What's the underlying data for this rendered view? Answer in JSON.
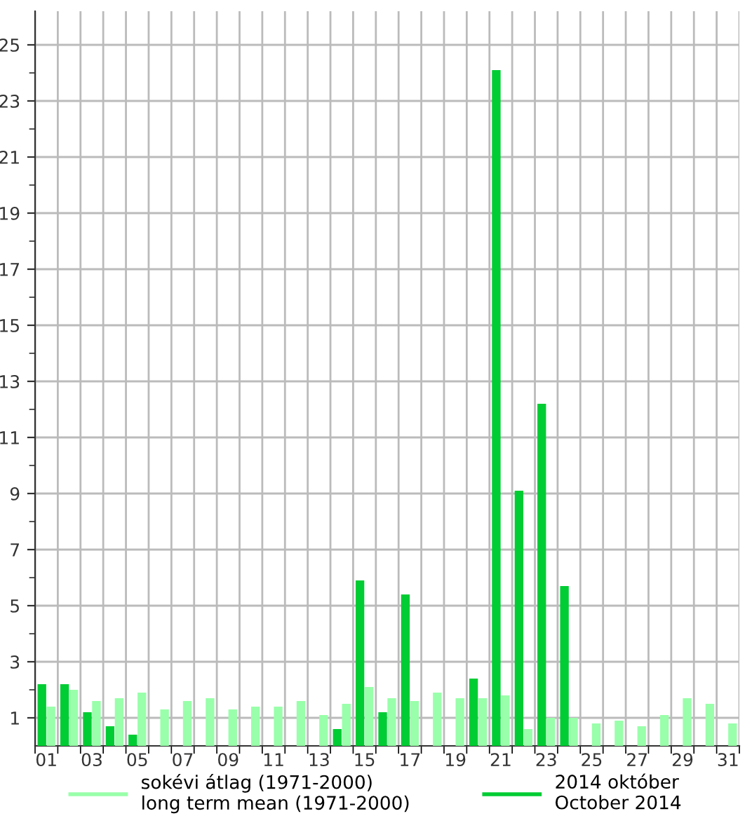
{
  "chart_data": {
    "type": "bar",
    "categories": [
      "01",
      null,
      "03",
      null,
      "05",
      null,
      "07",
      null,
      "09",
      null,
      "11",
      null,
      "13",
      null,
      "15",
      null,
      "17",
      null,
      "19",
      null,
      "21",
      null,
      "23",
      null,
      "25",
      null,
      "27",
      null,
      "29",
      null,
      "31"
    ],
    "series": [
      {
        "name": "sokévi átlag (1971-2000)\nlong term mean (1971-2000)",
        "color": "#99ffaa",
        "values": [
          1.4,
          2.0,
          1.6,
          1.7,
          1.9,
          1.3,
          1.6,
          1.7,
          1.3,
          1.4,
          1.4,
          1.6,
          1.1,
          1.5,
          2.1,
          1.7,
          1.6,
          1.9,
          1.7,
          1.7,
          1.8,
          0.6,
          1.0,
          1.0,
          0.8,
          0.9,
          0.7,
          1.1,
          1.7,
          1.5,
          0.8
        ]
      },
      {
        "name": "2014 október\nOctober 2014",
        "color": "#00cc33",
        "values": [
          2.2,
          2.2,
          1.2,
          0.7,
          0.4,
          null,
          null,
          null,
          null,
          null,
          null,
          null,
          null,
          0.6,
          5.9,
          1.2,
          5.4,
          null,
          null,
          2.4,
          24.1,
          9.1,
          12.2,
          5.7,
          null,
          null,
          null,
          null,
          null,
          null,
          null
        ]
      }
    ],
    "ylim": [
      0,
      26.2
    ],
    "yticks": [
      1,
      {
        "value": 2,
        "label": null
      },
      3,
      {
        "value": 4,
        "label": null
      },
      5,
      {
        "value": 6,
        "label": null
      },
      7,
      {
        "value": 8,
        "label": null
      },
      9,
      {
        "value": 10,
        "label": null
      },
      11,
      {
        "value": 12,
        "label": null
      },
      13,
      {
        "value": 14,
        "label": null
      },
      15,
      {
        "value": 16,
        "label": null
      },
      17,
      {
        "value": 18,
        "label": null
      },
      19,
      {
        "value": 20,
        "label": null
      },
      21,
      {
        "value": 22,
        "label": null
      },
      23,
      {
        "value": 24,
        "label": null
      },
      25
    ],
    "grid": true,
    "legend": "bottom"
  }
}
